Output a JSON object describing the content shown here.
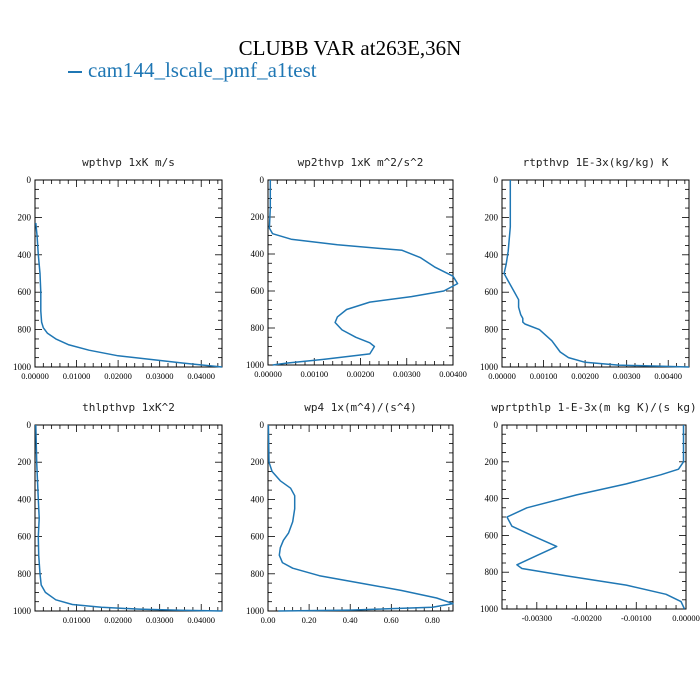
{
  "title": "CLUBB VAR at263E,36N",
  "legend": {
    "label": "cam144_lscale_pmf_a1test",
    "color": "#1f77b4"
  },
  "chart_data": [
    {
      "type": "line",
      "title": "wpthvp   1xK m/s",
      "xlim": [
        0,
        0.045
      ],
      "xticks": [
        0,
        0.01,
        0.02,
        0.03,
        0.04
      ],
      "xtick_labels": [
        "0.00000",
        "0.01000",
        "0.02000",
        "0.03000",
        "0.04000"
      ],
      "ylim": [
        1000,
        0
      ],
      "yticks": [
        0,
        200,
        400,
        600,
        800,
        1000
      ],
      "series": [
        {
          "color": "#1f77b4",
          "x": [
            0.0002,
            0.0005,
            0.0008,
            0.0012,
            0.0014,
            0.0014,
            0.0015,
            0.0016,
            0.002,
            0.003,
            0.005,
            0.008,
            0.013,
            0.02,
            0.028,
            0.036,
            0.045
          ],
          "y": [
            230,
            300,
            400,
            500,
            600,
            700,
            730,
            760,
            790,
            820,
            850,
            880,
            910,
            940,
            960,
            980,
            1000
          ]
        }
      ]
    },
    {
      "type": "line",
      "title": "wp2thvp   1xK m^2/s^2",
      "xlim": [
        0,
        0.004
      ],
      "xticks": [
        0,
        0.001,
        0.002,
        0.003,
        0.004
      ],
      "xtick_labels": [
        "0.00000",
        "0.00100",
        "0.00200",
        "0.00300",
        "0.00400"
      ],
      "ylim": [
        1000,
        0
      ],
      "yticks": [
        0,
        200,
        400,
        600,
        800,
        1000
      ],
      "series": [
        {
          "color": "#1f77b4",
          "x": [
            5e-05,
            5e-05,
            3e-05,
            0.0001,
            0.0005,
            0.0015,
            0.0029,
            0.0033,
            0.0036,
            0.004,
            0.0041,
            0.0038,
            0.0031,
            0.0022,
            0.0017,
            0.0015,
            0.00145,
            0.0016,
            0.0019,
            0.0022,
            0.0023,
            0.0022,
            0.0012,
            0.0004,
            0.0001
          ],
          "y": [
            0,
            150,
            260,
            290,
            320,
            350,
            380,
            420,
            470,
            520,
            560,
            600,
            630,
            660,
            700,
            740,
            770,
            810,
            850,
            880,
            900,
            940,
            970,
            990,
            1000
          ]
        }
      ]
    },
    {
      "type": "line",
      "title": "rtpthvp   1E-3x(kg/kg) K",
      "xlim": [
        0,
        0.0045
      ],
      "xticks": [
        0,
        0.001,
        0.002,
        0.003,
        0.004
      ],
      "xtick_labels": [
        "0.00000",
        "0.00100",
        "0.00200",
        "0.00300",
        "0.00400"
      ],
      "ylim": [
        1000,
        0
      ],
      "yticks": [
        0,
        200,
        400,
        600,
        800,
        1000
      ],
      "series": [
        {
          "color": "#1f77b4",
          "x": [
            0.0002,
            0.0002,
            0.00015,
            0.0001,
            5e-05,
            0.00015,
            0.0003,
            0.0004,
            0.0004,
            0.00045,
            0.0005,
            0.0005,
            0.00055,
            0.0009,
            0.0012,
            0.0014,
            0.0016,
            0.002,
            0.0028,
            0.0045
          ],
          "y": [
            0,
            250,
            380,
            450,
            500,
            540,
            600,
            640,
            680,
            720,
            740,
            760,
            770,
            800,
            860,
            920,
            950,
            975,
            990,
            1000
          ]
        }
      ]
    },
    {
      "type": "line",
      "title": "thlpthvp   1xK^2",
      "xlim": [
        0,
        0.045
      ],
      "xticks": [
        0.01,
        0.02,
        0.03,
        0.04
      ],
      "xtick_labels": [
        "0.01000",
        "0.02000",
        "0.03000",
        "0.04000"
      ],
      "ylim": [
        1000,
        0
      ],
      "yticks": [
        0,
        200,
        400,
        600,
        800,
        1000
      ],
      "series": [
        {
          "color": "#1f77b4",
          "x": [
            0.0002,
            0.0004,
            0.0008,
            0.001,
            0.0008,
            0.0009,
            0.0012,
            0.0015,
            0.0025,
            0.005,
            0.009,
            0.016,
            0.025,
            0.035,
            0.045
          ],
          "y": [
            0,
            200,
            400,
            500,
            600,
            700,
            800,
            860,
            900,
            940,
            965,
            980,
            990,
            996,
            1000
          ]
        }
      ]
    },
    {
      "type": "line",
      "title": "wp4   1x(m^4)/(s^4)",
      "xlim": [
        0,
        0.9
      ],
      "xticks": [
        0,
        0.2,
        0.4,
        0.6,
        0.8
      ],
      "xtick_labels": [
        "0.00",
        "0.20",
        "0.40",
        "0.60",
        "0.80"
      ],
      "ylim": [
        1000,
        0
      ],
      "yticks": [
        0,
        200,
        400,
        600,
        800,
        1000
      ],
      "series": [
        {
          "color": "#1f77b4",
          "x": [
            0.002,
            0.005,
            0.02,
            0.06,
            0.11,
            0.13,
            0.13,
            0.12,
            0.1,
            0.075,
            0.06,
            0.055,
            0.07,
            0.12,
            0.25,
            0.45,
            0.65,
            0.82,
            0.9,
            0.8,
            0.4,
            0.05
          ],
          "y": [
            0,
            200,
            250,
            300,
            340,
            380,
            450,
            520,
            580,
            620,
            660,
            700,
            740,
            770,
            810,
            850,
            890,
            930,
            960,
            980,
            995,
            1000
          ]
        }
      ]
    },
    {
      "type": "line",
      "title": "wprtpthlp   1-E-3x(m kg K)/(s kg)",
      "xlim": [
        -0.0037,
        0
      ],
      "xticks": [
        -0.003,
        -0.002,
        -0.001,
        0
      ],
      "xtick_labels": [
        "-0.00300",
        "-0.00200",
        "-0.00100",
        "0.00000"
      ],
      "ylim": [
        1000,
        0
      ],
      "yticks": [
        0,
        200,
        400,
        600,
        800,
        1000
      ],
      "series": [
        {
          "color": "#1f77b4",
          "x": [
            -5e-05,
            -5e-05,
            -0.00015,
            -0.0005,
            -0.0012,
            -0.0022,
            -0.0032,
            -0.0036,
            -0.0035,
            -0.0031,
            -0.0026,
            -0.003,
            -0.0034,
            -0.0033,
            -0.0024,
            -0.0012,
            -0.0004,
            -0.0001,
            -3e-05
          ],
          "y": [
            0,
            200,
            240,
            270,
            320,
            380,
            450,
            500,
            550,
            600,
            660,
            710,
            760,
            780,
            820,
            870,
            920,
            960,
            1000
          ]
        }
      ]
    }
  ]
}
